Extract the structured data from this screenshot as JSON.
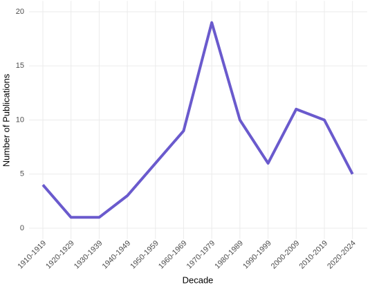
{
  "chart_data": {
    "type": "line",
    "x_label": "Decade",
    "y_label": "Number of Publications",
    "categories": [
      "1910-1919",
      "1920-1929",
      "1930-1939",
      "1940-1949",
      "1950-1959",
      "1960-1969",
      "1970-1979",
      "1980-1989",
      "1990-1999",
      "2000-2009",
      "2010-2019",
      "2020-2024"
    ],
    "values": [
      4,
      1,
      1,
      3,
      6,
      9,
      19,
      10,
      6,
      11,
      10,
      5
    ],
    "color": "#6a5acd",
    "ylim": [
      -1,
      21
    ],
    "yticks": [
      0,
      5,
      10,
      15,
      20
    ],
    "grid": true
  }
}
